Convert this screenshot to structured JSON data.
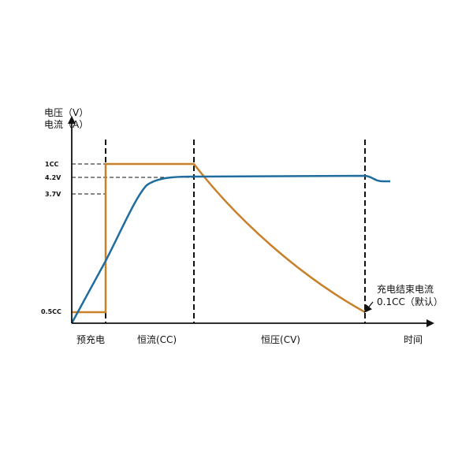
{
  "chart_data": {
    "type": "line",
    "title": "",
    "y_axis_label_line1": "电压（V）",
    "y_axis_label_line2": "电流（A）",
    "x_axis_label": "时间",
    "y_ticks": [
      "1CC",
      "4.2V",
      "3.7V",
      "0.5CC"
    ],
    "phases": [
      "预充电",
      "恒流(CC)",
      "恒压(CV)"
    ],
    "annotation_line1": "充电结束电流",
    "annotation_line2": "0.1CC（默认）",
    "colors": {
      "current": "#c8802a",
      "voltage": "#1f6d9f",
      "axis": "#111111"
    }
  }
}
